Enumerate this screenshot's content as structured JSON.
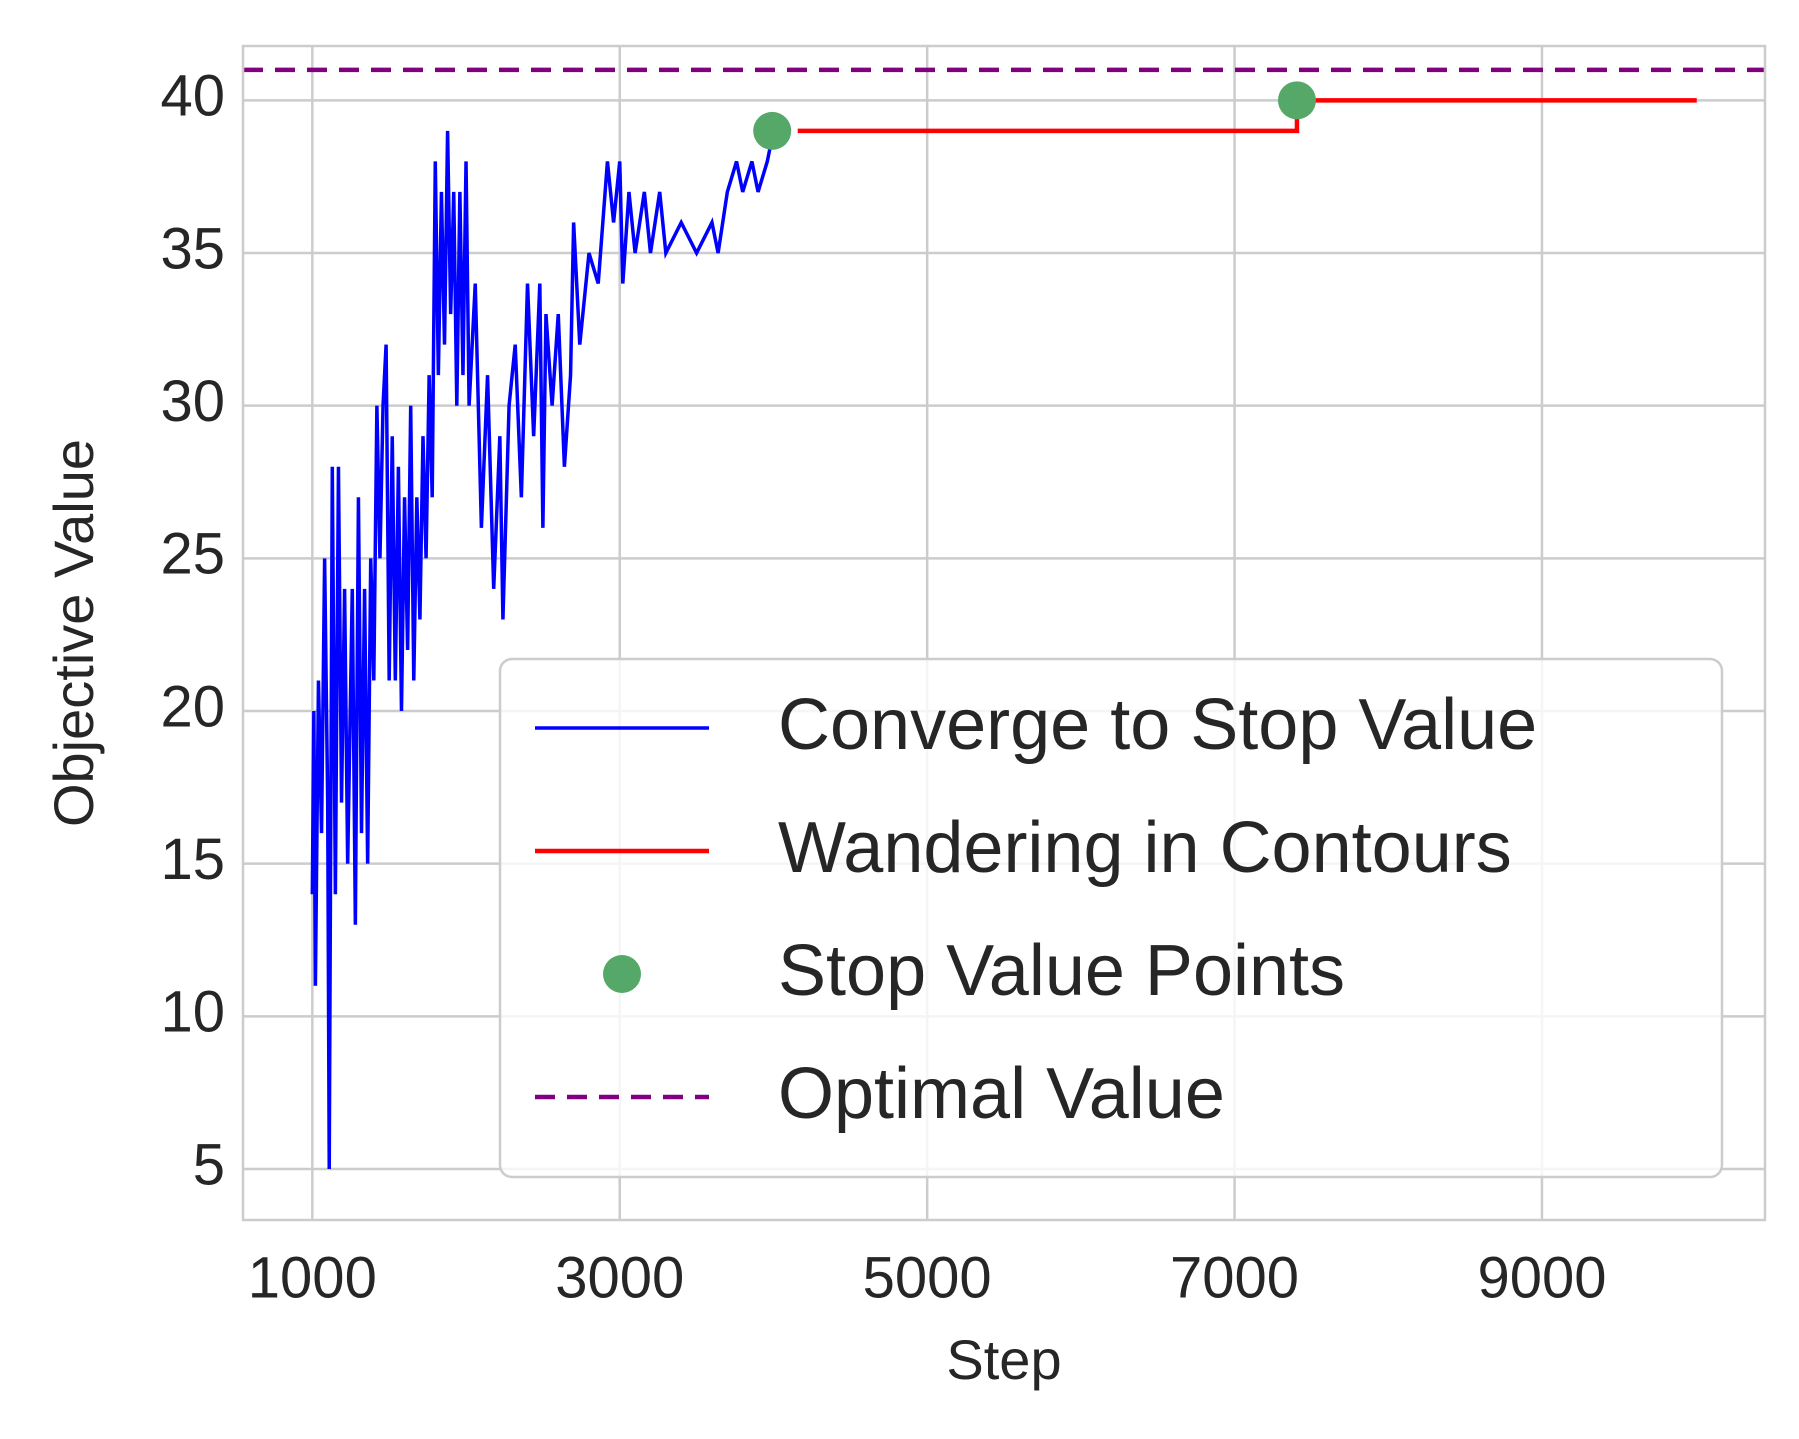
{
  "chart_data": {
    "type": "line",
    "x_label": "Step",
    "y_label": "Objective Value",
    "xlim": [
      549,
      10451
    ],
    "ylim": [
      3.33,
      41.78
    ],
    "xticks": [
      1000,
      3000,
      5000,
      7000,
      9000
    ],
    "yticks": [
      5,
      10,
      15,
      20,
      25,
      30,
      35,
      40
    ],
    "grid": true,
    "legend": "lower right",
    "series": [
      {
        "name": "Converge to Stop Value",
        "color": "#0000ff",
        "mode": "line",
        "x": [
          1000,
          1010,
          1020,
          1040,
          1060,
          1080,
          1100,
          1110,
          1130,
          1150,
          1170,
          1190,
          1210,
          1230,
          1260,
          1280,
          1300,
          1320,
          1340,
          1360,
          1380,
          1400,
          1420,
          1440,
          1460,
          1480,
          1500,
          1520,
          1540,
          1560,
          1580,
          1600,
          1620,
          1640,
          1660,
          1680,
          1700,
          1720,
          1740,
          1760,
          1780,
          1800,
          1820,
          1840,
          1860,
          1880,
          1900,
          1920,
          1940,
          1960,
          1980,
          2000,
          2020,
          2060,
          2100,
          2140,
          2180,
          2220,
          2240,
          2280,
          2320,
          2360,
          2400,
          2440,
          2480,
          2500,
          2520,
          2560,
          2600,
          2640,
          2680,
          2700,
          2740,
          2800,
          2860,
          2920,
          2960,
          3000,
          3020,
          3060,
          3100,
          3160,
          3200,
          3260,
          3300,
          3400,
          3500,
          3600,
          3640,
          3700,
          3760,
          3800,
          3860,
          3900,
          3960,
          4000
        ],
        "values": [
          14,
          20,
          11,
          21,
          16,
          25,
          17,
          5,
          28,
          14,
          28,
          17,
          24,
          15,
          24,
          13,
          27,
          16,
          24,
          15,
          25,
          21,
          30,
          25,
          30,
          32,
          21,
          29,
          21,
          28,
          20,
          27,
          22,
          30,
          21,
          27,
          23,
          29,
          25,
          31,
          27,
          38,
          31,
          37,
          32,
          39,
          33,
          37,
          30,
          37,
          31,
          38,
          30,
          34,
          26,
          31,
          24,
          29,
          23,
          30,
          32,
          27,
          34,
          29,
          34,
          26,
          33,
          30,
          33,
          28,
          31,
          36,
          32,
          35,
          34,
          38,
          36,
          38,
          34,
          37,
          35,
          37,
          35,
          37,
          35,
          36,
          35,
          36,
          35,
          37,
          38,
          37,
          38,
          37,
          38,
          39
        ]
      },
      {
        "name": "Wandering in Contours",
        "color": "#ff0000",
        "mode": "line",
        "x": [
          4158,
          7406,
          7406,
          10007
        ],
        "values": [
          39,
          39,
          40,
          40
        ]
      },
      {
        "name": "Stop Value Points",
        "color": "#55a868",
        "mode": "markers",
        "x": [
          3992,
          7406
        ],
        "values": [
          39,
          40
        ]
      },
      {
        "name": "Optimal Value",
        "color": "#800080",
        "mode": "hline",
        "values": [
          41
        ]
      }
    ]
  }
}
